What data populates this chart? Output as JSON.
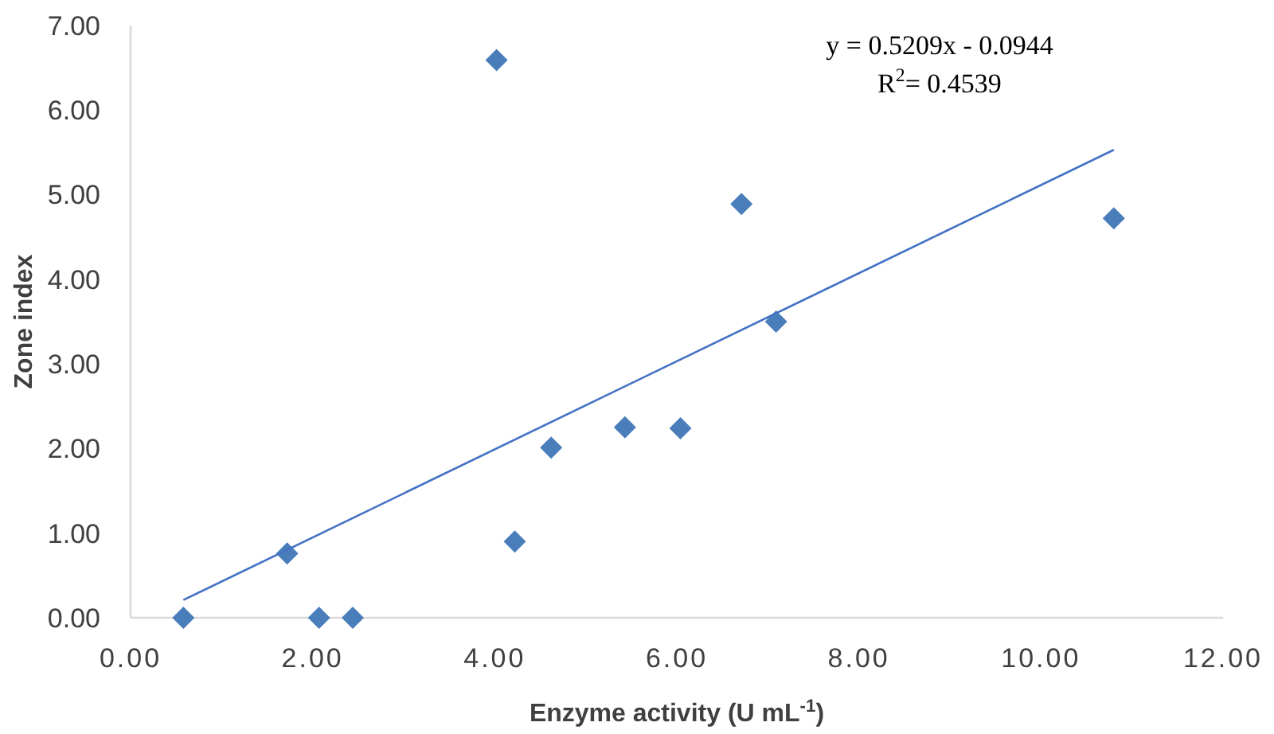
{
  "chart_data": {
    "type": "scatter",
    "xlabel": "Enzyme activity (U mL$^{-1}$)",
    "ylabel": "Zone index",
    "xlim": [
      0,
      12
    ],
    "xticks": [
      {
        "value": 0,
        "label": "0.00"
      },
      {
        "value": 2,
        "label": "2.00"
      },
      {
        "value": 4,
        "label": "4.00"
      },
      {
        "value": 6,
        "label": "6.00"
      },
      {
        "value": 8,
        "label": "8.00"
      },
      {
        "value": 10,
        "label": "10.00"
      },
      {
        "value": 12,
        "label": "12.00"
      }
    ],
    "ylim": [
      0,
      7
    ],
    "yticks": [
      {
        "value": 0,
        "label": "0.00"
      },
      {
        "value": 1,
        "label": "1.00"
      },
      {
        "value": 2,
        "label": "2.00"
      },
      {
        "value": 3,
        "label": "3.00"
      },
      {
        "value": 4,
        "label": "4.00"
      },
      {
        "value": 5,
        "label": "5.00"
      },
      {
        "value": 6,
        "label": "6.00"
      },
      {
        "value": 7,
        "label": "7.00"
      }
    ],
    "grid": false,
    "series": [
      {
        "color": "#4a7ebb",
        "marker": "diamond",
        "x": [
          0.58,
          1.72,
          2.07,
          2.44,
          4.02,
          4.22,
          4.62,
          5.43,
          6.04,
          6.71,
          7.09,
          10.8
        ],
        "values": [
          0,
          0.76,
          0,
          0,
          6.59,
          0.9,
          2.01,
          2.25,
          2.24,
          4.89,
          3.5,
          4.72
        ]
      },
      {
        "type": "line",
        "color": "#4472c4",
        "marker": "none",
        "line_style": "solid",
        "x": [
          0.58,
          10.8
        ],
        "values": [
          0.21,
          5.53
        ]
      }
    ],
    "annotations": [
      "y = 0.5209x - 0.0944",
      "R$^{2}$= 0.4539"
    ]
  }
}
